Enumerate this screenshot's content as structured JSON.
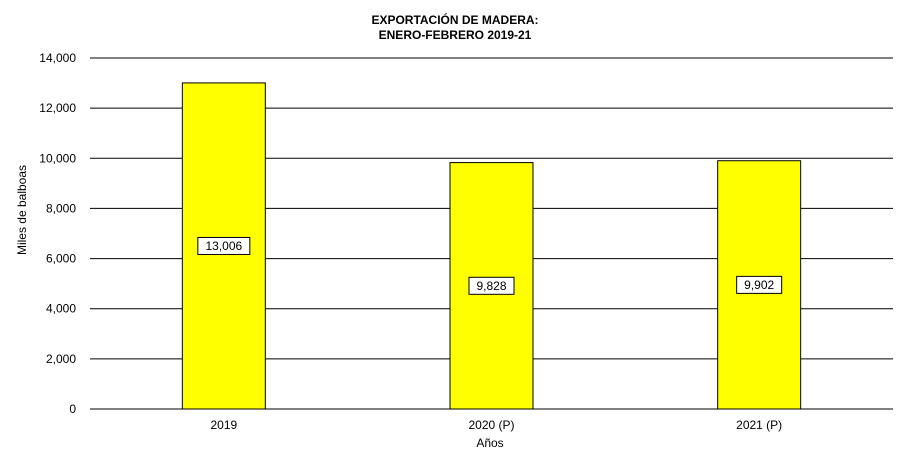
{
  "chart_data": {
    "type": "bar",
    "title": "EXPORTACIÓN  DE  MADERA:",
    "subtitle": "ENERO-FEBRERO  2019-21",
    "categories": [
      "2019",
      "2020 (P)",
      "2021 (P)"
    ],
    "values": [
      13006,
      9828,
      9902
    ],
    "data_labels": [
      "13,006",
      "9,828",
      "9,902"
    ],
    "xlabel": "Años",
    "ylabel": "Miles de balboas",
    "ylim": [
      0,
      14000
    ],
    "yticks": [
      0,
      2000,
      4000,
      6000,
      8000,
      10000,
      12000,
      14000
    ],
    "ytick_labels": [
      "0",
      "2,000",
      "4,000",
      "6,000",
      "8,000",
      "10,000",
      "12,000",
      "14,000"
    ],
    "grid": true,
    "bar_color": "#ffff00",
    "legend": "none"
  }
}
